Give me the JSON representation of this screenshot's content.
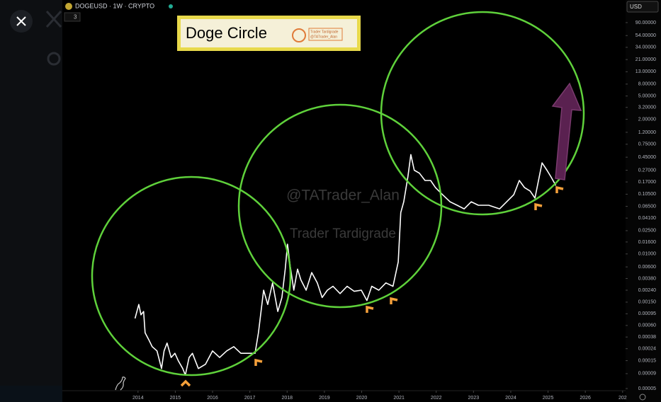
{
  "chart_data": {
    "type": "line",
    "title": "DOGEUSD · 1W · CRYPTO",
    "indicator_count": "3",
    "banner": {
      "title": "Doge Circle",
      "logo_name": "Trader Tardigrade",
      "logo_handle": "@TATrader_Alan"
    },
    "watermarks": [
      "@TATrader_Alan",
      "Trader Tardigrade"
    ],
    "currency": "USD",
    "log_scale": true,
    "color": "#ffffff",
    "x": [
      2013.92,
      2014.02,
      2014.08,
      2014.15,
      2014.19,
      2014.29,
      2014.38,
      2014.51,
      2014.63,
      2014.7,
      2014.78,
      2014.89,
      2014.99,
      2015.08,
      2015.2,
      2015.27,
      2015.37,
      2015.46,
      2015.62,
      2015.81,
      2016.0,
      2016.19,
      2016.38,
      2016.57,
      2016.76,
      2016.95,
      2017.14,
      2017.23,
      2017.37,
      2017.48,
      2017.61,
      2017.75,
      2017.86,
      2017.95,
      2018.01,
      2018.08,
      2018.18,
      2018.28,
      2018.37,
      2018.51,
      2018.66,
      2018.81,
      2018.94,
      2019.08,
      2019.23,
      2019.42,
      2019.61,
      2019.8,
      2019.99,
      2020.14,
      2020.27,
      2020.46,
      2020.65,
      2020.84,
      2020.98,
      2021.05,
      2021.13,
      2021.24,
      2021.32,
      2021.41,
      2021.55,
      2021.7,
      2021.85,
      2021.98,
      2022.17,
      2022.37,
      2022.56,
      2022.75,
      2022.94,
      2023.13,
      2023.41,
      2023.7,
      2023.89,
      2024.08,
      2024.23,
      2024.37,
      2024.52,
      2024.65,
      2024.84,
      2024.97,
      2025.08,
      2025.21
    ],
    "values": [
      0.00079,
      0.00137,
      0.00091,
      0.00104,
      0.00045,
      0.00034,
      0.00026,
      0.00022,
      0.00011,
      0.00022,
      0.0003,
      0.00017,
      0.0002,
      0.00015,
      0.00011,
      8.5e-05,
      0.00017,
      0.0002,
      0.00011,
      0.00013,
      0.00022,
      0.00017,
      0.00022,
      0.00026,
      0.0002,
      0.0002,
      0.0002,
      0.00045,
      0.0024,
      0.00137,
      0.0032,
      0.00104,
      0.0018,
      0.0055,
      0.0147,
      0.0064,
      0.0024,
      0.0055,
      0.0036,
      0.0024,
      0.0048,
      0.0032,
      0.0018,
      0.0024,
      0.0028,
      0.0021,
      0.0028,
      0.0023,
      0.0024,
      0.0016,
      0.0028,
      0.0024,
      0.0032,
      0.0028,
      0.0073,
      0.051,
      0.078,
      0.207,
      0.5,
      0.27,
      0.24,
      0.18,
      0.18,
      0.136,
      0.103,
      0.078,
      0.068,
      0.059,
      0.078,
      0.068,
      0.068,
      0.059,
      0.078,
      0.103,
      0.18,
      0.136,
      0.119,
      0.09,
      0.36,
      0.27,
      0.207,
      0.148
    ],
    "xlim": [
      2011.97,
      2027.08
    ],
    "xticks": [
      2014,
      2015,
      2016,
      2017,
      2018,
      2019,
      2020,
      2021,
      2022,
      2023,
      2024,
      2025,
      2026,
      {
        "value": 2027,
        "label": "202"
      }
    ],
    "ylim": [
      4.6e-05,
      219
    ],
    "yticks": [
      {
        "value": 90,
        "label": "90.00000"
      },
      {
        "value": 54,
        "label": "54.00000"
      },
      {
        "value": 34,
        "label": "34.00000"
      },
      {
        "value": 21,
        "label": "21.00000"
      },
      {
        "value": 13,
        "label": "13.00000"
      },
      {
        "value": 8,
        "label": "8.00000"
      },
      {
        "value": 5,
        "label": "5.00000"
      },
      {
        "value": 3.2,
        "label": "3.20000"
      },
      {
        "value": 2,
        "label": "2.00000"
      },
      {
        "value": 1.2,
        "label": "1.20000"
      },
      {
        "value": 0.75,
        "label": "0.75000"
      },
      {
        "value": 0.45,
        "label": "0.45000"
      },
      {
        "value": 0.27,
        "label": "0.27000"
      },
      {
        "value": 0.17,
        "label": "0.17000"
      },
      {
        "value": 0.105,
        "label": "0.10500"
      },
      {
        "value": 0.065,
        "label": "0.06500"
      },
      {
        "value": 0.041,
        "label": "0.04100"
      },
      {
        "value": 0.025,
        "label": "0.02500"
      },
      {
        "value": 0.016,
        "label": "0.01600"
      },
      {
        "value": 0.01,
        "label": "0.01000"
      },
      {
        "value": 0.006,
        "label": "0.00600"
      },
      {
        "value": 0.0038,
        "label": "0.00380"
      },
      {
        "value": 0.0024,
        "label": "0.00240"
      },
      {
        "value": 0.0015,
        "label": "0.00150"
      },
      {
        "value": 0.00095,
        "label": "0.00095"
      },
      {
        "value": 0.0006,
        "label": "0.00060"
      },
      {
        "value": 0.00038,
        "label": "0.00038"
      },
      {
        "value": 0.00024,
        "label": "0.00024"
      },
      {
        "value": 0.00015,
        "label": "0.00015"
      },
      {
        "value": 9e-05,
        "label": "0.00009"
      },
      {
        "value": 5e-05,
        "label": "0.00005"
      }
    ]
  }
}
